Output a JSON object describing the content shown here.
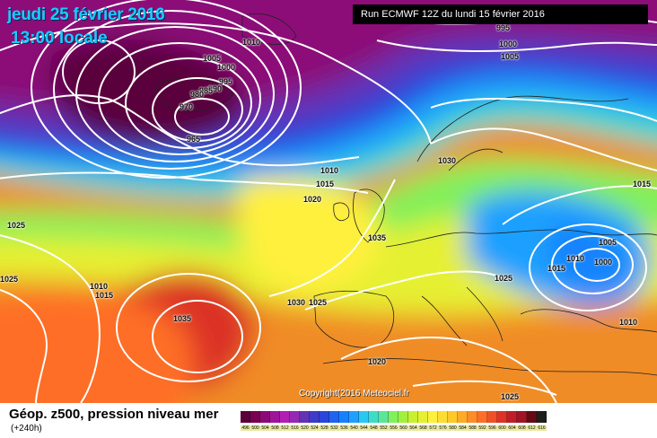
{
  "header": {
    "date": "jeudi 25 février 2016",
    "time": "13:00 locale",
    "run": "Run ECMWF 12Z du lundi 15 février 2016"
  },
  "copyright": "Copyright(2016 Meteociel.fr",
  "footer": {
    "title": "Géop. z500, pression niveau mer",
    "subtitle": "(+240h)"
  },
  "isobar_labels": [
    {
      "id": "iso-1010-north",
      "text": "1010"
    },
    {
      "id": "iso-995-top",
      "text": "995"
    },
    {
      "id": "iso-1000-top",
      "text": "1000"
    },
    {
      "id": "iso-1005-top",
      "text": "1005"
    },
    {
      "id": "iso-1005-ice",
      "text": "1005"
    },
    {
      "id": "iso-1000-ice",
      "text": "1000"
    },
    {
      "id": "iso-995-ice",
      "text": "995"
    },
    {
      "id": "iso-990-ice",
      "text": "990"
    },
    {
      "id": "iso-985-ice",
      "text": "985"
    },
    {
      "id": "iso-980-ice",
      "text": "980"
    },
    {
      "id": "iso-970-ice",
      "text": "970"
    },
    {
      "id": "iso-965-low",
      "text": "965"
    },
    {
      "id": "iso-1030-nor",
      "text": "1030"
    },
    {
      "id": "iso-1010-uk",
      "text": "1010"
    },
    {
      "id": "iso-1015-uk",
      "text": "1015"
    },
    {
      "id": "iso-1020-uk",
      "text": "1020"
    },
    {
      "id": "iso-1015-east",
      "text": "1015"
    },
    {
      "id": "iso-1035-fr",
      "text": "1035"
    },
    {
      "id": "iso-1025-west",
      "text": "1025"
    },
    {
      "id": "iso-1025-west2",
      "text": "1025"
    },
    {
      "id": "iso-1010-atl",
      "text": "1010"
    },
    {
      "id": "iso-1015-atl",
      "text": "1015"
    },
    {
      "id": "iso-1035-azo",
      "text": "1035"
    },
    {
      "id": "iso-1030-spain",
      "text": "1030"
    },
    {
      "id": "iso-1025-spain",
      "text": "1025"
    },
    {
      "id": "iso-1025-ita",
      "text": "1025"
    },
    {
      "id": "iso-1005-ukr",
      "text": "1005"
    },
    {
      "id": "iso-1010-ukr",
      "text": "1010"
    },
    {
      "id": "iso-1000-ukr",
      "text": "1000"
    },
    {
      "id": "iso-1015-bal",
      "text": "1015"
    },
    {
      "id": "iso-1010-tur",
      "text": "1010"
    },
    {
      "id": "iso-1020-afr",
      "text": "1020"
    },
    {
      "id": "iso-1025-afr",
      "text": "1025"
    }
  ],
  "scale": {
    "labels": [
      "496",
      "500",
      "504",
      "508",
      "512",
      "516",
      "520",
      "524",
      "528",
      "532",
      "536",
      "540",
      "544",
      "548",
      "552",
      "556",
      "560",
      "564",
      "568",
      "572",
      "576",
      "580",
      "584",
      "588",
      "592",
      "596",
      "600",
      "604",
      "608",
      "612",
      "616"
    ],
    "colors": [
      "#5a003c",
      "#780050",
      "#8c0a78",
      "#a0149a",
      "#b41eb4",
      "#9628b4",
      "#6432b4",
      "#3c3cc8",
      "#2846dc",
      "#1e64f0",
      "#1482ff",
      "#1ea0ff",
      "#28c8f0",
      "#3cdcc8",
      "#5ae696",
      "#82f05a",
      "#a0f03c",
      "#c8f032",
      "#e6f032",
      "#fff03c",
      "#ffdc32",
      "#ffc828",
      "#ffaa28",
      "#ff8c28",
      "#ff6e28",
      "#f05028",
      "#dc3228",
      "#be1e28",
      "#a01428",
      "#640a14",
      "#1e1e1e"
    ]
  },
  "colors": {
    "title_cyan": "#18ccff",
    "run_bg": "#000000"
  }
}
